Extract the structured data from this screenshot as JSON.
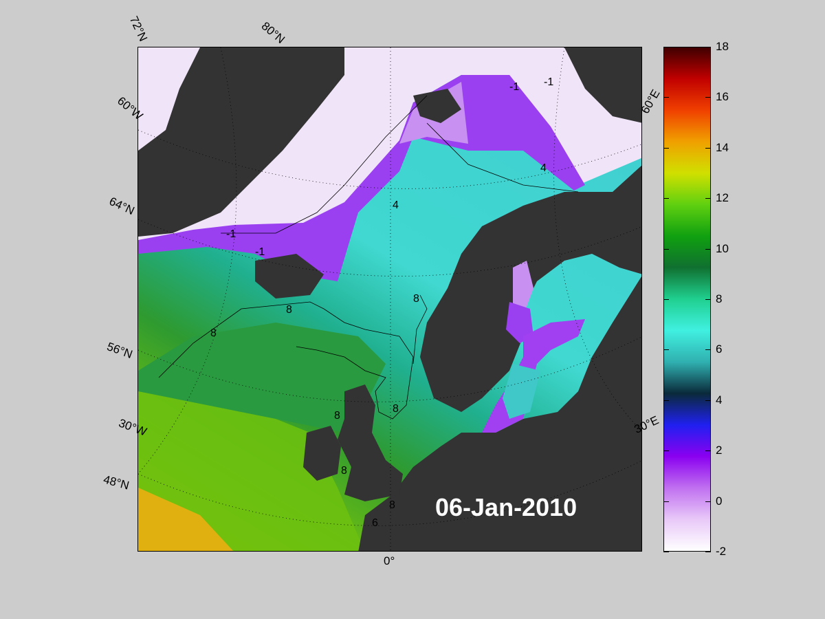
{
  "map": {
    "date": "06-Jan-2010",
    "contour_labels": [
      "-1",
      "-1",
      "-1",
      "-1",
      "4",
      "4",
      "8",
      "8",
      "8",
      "8",
      "8",
      "8",
      "8",
      "6"
    ],
    "axis_labels": {
      "lat_72n": "72°N",
      "lat_80n": "80°N",
      "lat_64n": "64°N",
      "lat_56n": "56°N",
      "lat_48n": "48°N",
      "lon_60w": "60°W",
      "lon_30w": "30°W",
      "lon_0": "0°",
      "lon_30e": "30°E",
      "lon_60e": "60°E"
    }
  },
  "colorbar": {
    "ticks": [
      "18",
      "16",
      "14",
      "12",
      "10",
      "8",
      "6",
      "4",
      "2",
      "0",
      "-2"
    ],
    "min": -2,
    "max": 18,
    "colors": [
      "#ffffff",
      "#e8c8f8",
      "#c070f0",
      "#8a00f0",
      "#2020f0",
      "#0a2a3a",
      "#30b0b0",
      "#40f0e0",
      "#20d090",
      "#107030",
      "#10a010",
      "#60d010",
      "#d0e000",
      "#f0a000",
      "#f04000",
      "#c00000",
      "#400000"
    ]
  }
}
